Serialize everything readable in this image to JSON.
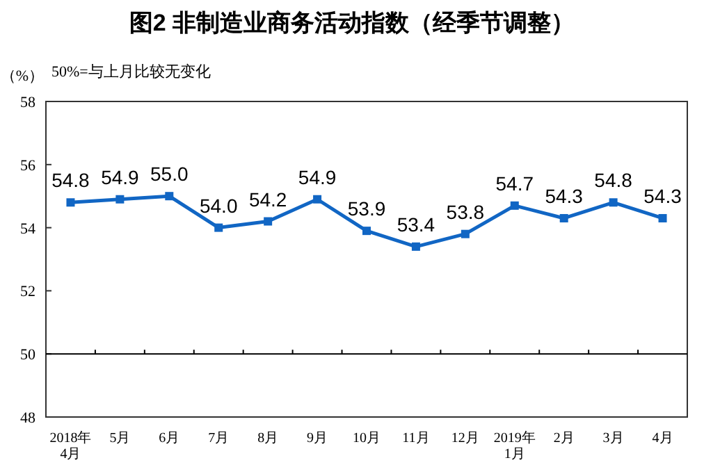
{
  "chart_data": {
    "type": "line",
    "title": "图2  非制造业商务活动指数（经季节调整）",
    "ylabel": "（%）",
    "annotations": [
      "50%=与上月比较无变化"
    ],
    "categories": [
      "2018年\n4月",
      "5月",
      "6月",
      "7月",
      "8月",
      "9月",
      "10月",
      "11月",
      "12月",
      "2019年\n1月",
      "2月",
      "3月",
      "4月"
    ],
    "series": [
      {
        "color": "#1166c4",
        "values": [
          54.8,
          54.9,
          55.0,
          54.0,
          54.2,
          54.9,
          53.9,
          53.4,
          53.8,
          54.7,
          54.3,
          54.8,
          54.3
        ],
        "value_labels": [
          "54.8",
          "54.9",
          "55.0",
          "54.0",
          "54.2",
          "54.9",
          "53.9",
          "53.4",
          "53.8",
          "54.7",
          "54.3",
          "54.8",
          "54.3"
        ]
      }
    ],
    "ylim": [
      48,
      58
    ],
    "yticks": [
      48,
      50,
      52,
      54,
      56,
      58
    ],
    "ref_lines": [
      {
        "axis": "y",
        "value": 50,
        "color": "#000000"
      }
    ],
    "marker": "square"
  }
}
